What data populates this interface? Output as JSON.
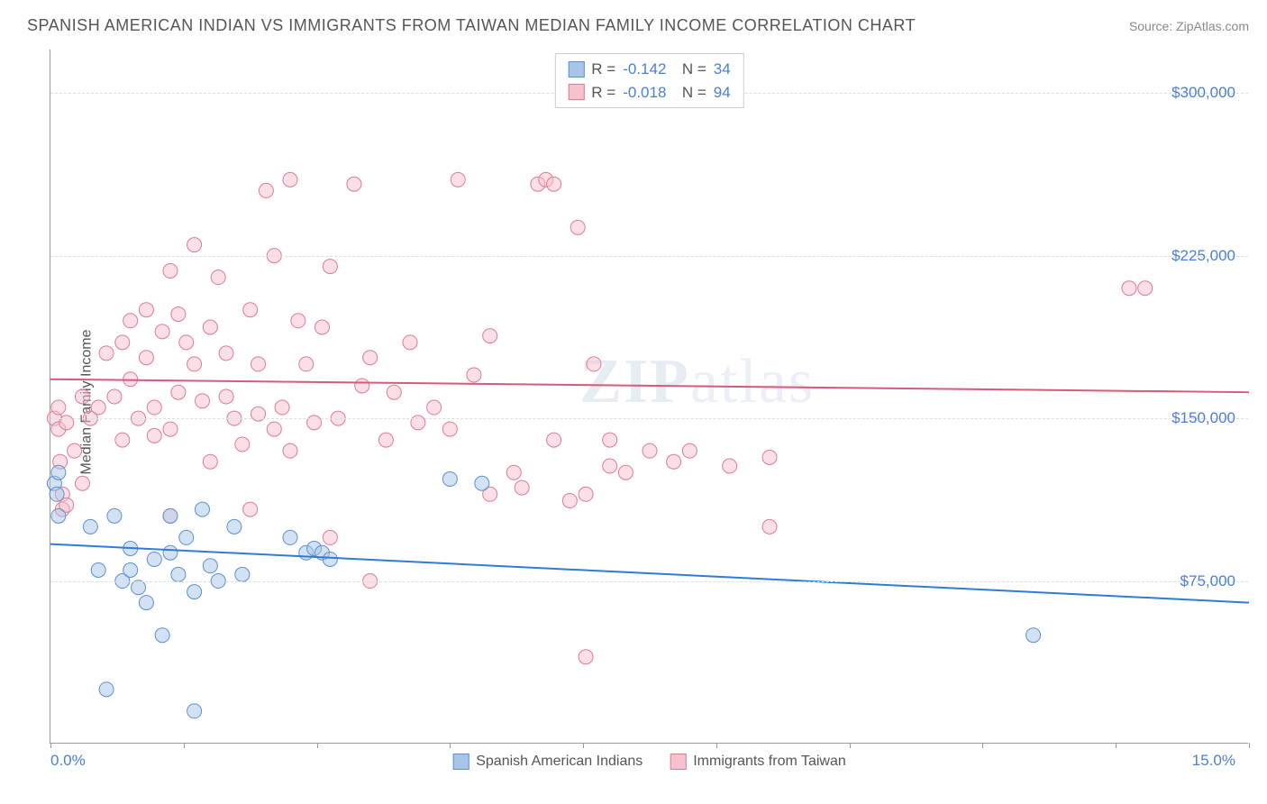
{
  "title": "SPANISH AMERICAN INDIAN VS IMMIGRANTS FROM TAIWAN MEDIAN FAMILY INCOME CORRELATION CHART",
  "source_label": "Source: ZipAtlas.com",
  "watermark": "ZIPatlas",
  "y_axis_label": "Median Family Income",
  "chart": {
    "type": "scatter",
    "background_color": "#ffffff",
    "grid_color": "#dddddd",
    "axis_color": "#999999",
    "x_min": 0.0,
    "x_max": 15.0,
    "x_min_label": "0.0%",
    "x_max_label": "15.0%",
    "x_tick_positions": [
      0,
      1.667,
      3.333,
      5.0,
      6.667,
      8.333,
      10.0,
      11.667,
      13.333,
      15.0
    ],
    "y_min": 0,
    "y_max": 320000,
    "y_gridlines": [
      75000,
      150000,
      225000,
      300000
    ],
    "y_tick_labels": [
      "$75,000",
      "$150,000",
      "$225,000",
      "$300,000"
    ],
    "y_tick_font_color": "#4a7fd8",
    "y_tick_fontsize": 17,
    "title_fontsize": 18,
    "title_color": "#555555",
    "marker_radius": 8,
    "marker_opacity": 0.5,
    "series": [
      {
        "name": "Spanish American Indians",
        "color_fill": "#a8c5e8",
        "color_stroke": "#5b8fd0",
        "r": "-0.142",
        "n": "34",
        "trend_y_at_xmin": 92000,
        "trend_y_at_xmax": 65000,
        "trend_color": "#2e7cd6",
        "trend_width": 2,
        "points": [
          [
            0.05,
            120000
          ],
          [
            0.08,
            115000
          ],
          [
            0.1,
            125000
          ],
          [
            0.1,
            105000
          ],
          [
            0.7,
            25000
          ],
          [
            0.8,
            105000
          ],
          [
            0.9,
            75000
          ],
          [
            1.0,
            90000
          ],
          [
            1.0,
            80000
          ],
          [
            1.1,
            72000
          ],
          [
            1.2,
            65000
          ],
          [
            1.3,
            85000
          ],
          [
            1.4,
            50000
          ],
          [
            1.5,
            105000
          ],
          [
            1.5,
            88000
          ],
          [
            1.6,
            78000
          ],
          [
            1.7,
            95000
          ],
          [
            1.8,
            70000
          ],
          [
            1.8,
            15000
          ],
          [
            1.9,
            108000
          ],
          [
            2.0,
            82000
          ],
          [
            2.1,
            75000
          ],
          [
            2.3,
            100000
          ],
          [
            2.4,
            78000
          ],
          [
            3.0,
            95000
          ],
          [
            3.2,
            88000
          ],
          [
            3.3,
            90000
          ],
          [
            3.4,
            88000
          ],
          [
            3.5,
            85000
          ],
          [
            5.0,
            122000
          ],
          [
            5.4,
            120000
          ],
          [
            12.3,
            50000
          ],
          [
            0.5,
            100000
          ],
          [
            0.6,
            80000
          ]
        ]
      },
      {
        "name": "Immigrants from Taiwan",
        "color_fill": "#f5c2cd",
        "color_stroke": "#e07a93",
        "r": "-0.018",
        "n": "94",
        "trend_y_at_xmin": 168000,
        "trend_y_at_xmax": 162000,
        "trend_color": "#d85a7a",
        "trend_width": 2,
        "points": [
          [
            0.05,
            150000
          ],
          [
            0.1,
            145000
          ],
          [
            0.1,
            155000
          ],
          [
            0.12,
            130000
          ],
          [
            0.15,
            115000
          ],
          [
            0.15,
            108000
          ],
          [
            0.2,
            148000
          ],
          [
            0.2,
            110000
          ],
          [
            0.4,
            120000
          ],
          [
            0.5,
            150000
          ],
          [
            0.6,
            155000
          ],
          [
            0.7,
            180000
          ],
          [
            0.8,
            160000
          ],
          [
            0.9,
            185000
          ],
          [
            0.9,
            140000
          ],
          [
            1.0,
            195000
          ],
          [
            1.1,
            150000
          ],
          [
            1.2,
            200000
          ],
          [
            1.2,
            178000
          ],
          [
            1.3,
            155000
          ],
          [
            1.4,
            190000
          ],
          [
            1.5,
            218000
          ],
          [
            1.5,
            145000
          ],
          [
            1.5,
            105000
          ],
          [
            1.6,
            198000
          ],
          [
            1.7,
            185000
          ],
          [
            1.8,
            230000
          ],
          [
            1.8,
            175000
          ],
          [
            1.9,
            158000
          ],
          [
            2.0,
            192000
          ],
          [
            2.0,
            130000
          ],
          [
            2.1,
            215000
          ],
          [
            2.2,
            180000
          ],
          [
            2.3,
            150000
          ],
          [
            2.4,
            138000
          ],
          [
            2.5,
            200000
          ],
          [
            2.5,
            108000
          ],
          [
            2.6,
            175000
          ],
          [
            2.7,
            255000
          ],
          [
            2.8,
            225000
          ],
          [
            2.8,
            145000
          ],
          [
            2.9,
            155000
          ],
          [
            3.0,
            260000
          ],
          [
            3.0,
            135000
          ],
          [
            3.1,
            195000
          ],
          [
            3.2,
            175000
          ],
          [
            3.3,
            148000
          ],
          [
            3.5,
            220000
          ],
          [
            3.5,
            95000
          ],
          [
            3.6,
            150000
          ],
          [
            3.8,
            258000
          ],
          [
            4.0,
            178000
          ],
          [
            4.0,
            75000
          ],
          [
            4.2,
            140000
          ],
          [
            4.5,
            185000
          ],
          [
            4.8,
            155000
          ],
          [
            5.1,
            260000
          ],
          [
            5.3,
            170000
          ],
          [
            5.5,
            188000
          ],
          [
            5.5,
            115000
          ],
          [
            5.8,
            125000
          ],
          [
            5.9,
            118000
          ],
          [
            6.1,
            258000
          ],
          [
            6.2,
            260000
          ],
          [
            6.3,
            258000
          ],
          [
            6.3,
            140000
          ],
          [
            6.5,
            112000
          ],
          [
            6.6,
            238000
          ],
          [
            6.7,
            115000
          ],
          [
            6.7,
            40000
          ],
          [
            6.8,
            175000
          ],
          [
            7.0,
            140000
          ],
          [
            7.0,
            128000
          ],
          [
            7.2,
            125000
          ],
          [
            7.5,
            135000
          ],
          [
            7.8,
            130000
          ],
          [
            8.0,
            135000
          ],
          [
            8.5,
            128000
          ],
          [
            9.0,
            100000
          ],
          [
            9.0,
            132000
          ],
          [
            13.5,
            210000
          ],
          [
            13.7,
            210000
          ],
          [
            0.3,
            135000
          ],
          [
            0.4,
            160000
          ],
          [
            1.0,
            168000
          ],
          [
            1.3,
            142000
          ],
          [
            1.6,
            162000
          ],
          [
            2.2,
            160000
          ],
          [
            2.6,
            152000
          ],
          [
            3.4,
            192000
          ],
          [
            3.9,
            165000
          ],
          [
            4.3,
            162000
          ],
          [
            4.6,
            148000
          ],
          [
            5.0,
            145000
          ]
        ]
      }
    ],
    "bottom_legend_fontsize": 16,
    "top_legend_border": "#cccccc",
    "stat_value_color": "#4a7fd8"
  }
}
